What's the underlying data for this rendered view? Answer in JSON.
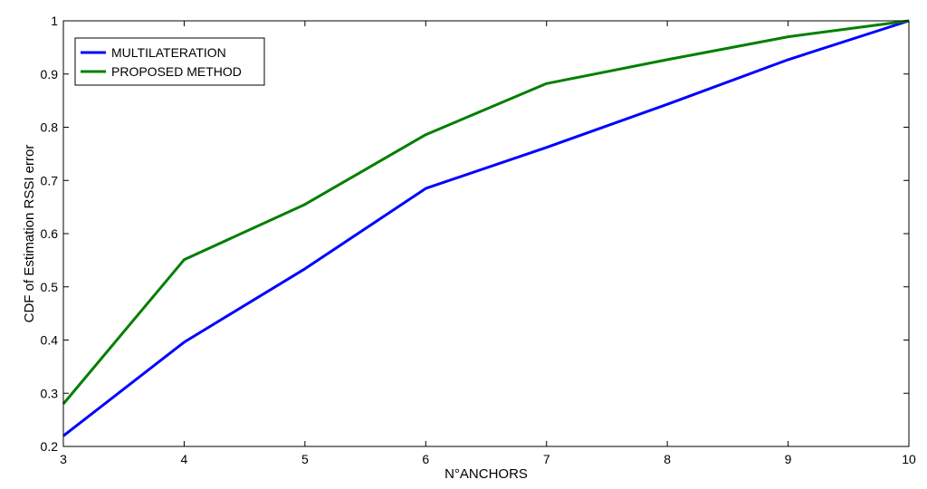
{
  "chart_data": {
    "type": "line",
    "title": "",
    "xlabel": "N°ANCHORS",
    "ylabel": "CDF of Estimation RSSI error",
    "xlim": [
      3,
      10
    ],
    "ylim": [
      0.2,
      1
    ],
    "xticks": [
      "3",
      "4",
      "5",
      "6",
      "7",
      "8",
      "9",
      "10"
    ],
    "yticks": [
      "0.2",
      "0.3",
      "0.4",
      "0.5",
      "0.6",
      "0.7",
      "0.8",
      "0.9",
      "1"
    ],
    "grid": false,
    "legend_position": "top-left",
    "series": [
      {
        "name": "MULTILATERATION",
        "color": "#0000ff",
        "x": [
          3,
          4,
          5,
          6,
          7,
          8,
          9,
          10
        ],
        "y": [
          0.22,
          0.396,
          0.534,
          0.685,
          0.762,
          0.843,
          0.927,
          1.0
        ]
      },
      {
        "name": "PROPOSED METHOD",
        "color": "#007f00",
        "x": [
          3,
          4,
          5,
          6,
          7,
          8,
          9,
          10
        ],
        "y": [
          0.28,
          0.551,
          0.655,
          0.786,
          0.882,
          0.927,
          0.97,
          1.0
        ]
      }
    ]
  }
}
